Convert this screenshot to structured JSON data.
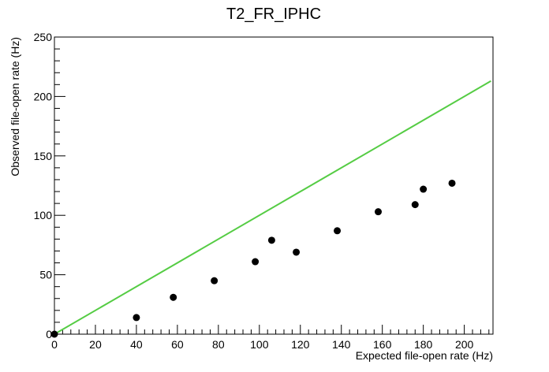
{
  "chart_data": {
    "type": "scatter",
    "title": "T2_FR_IPHC",
    "xlabel": "Expected file-open rate (Hz)",
    "ylabel": "Observed file-open rate (Hz)",
    "xlim": [
      0,
      214
    ],
    "ylim": [
      0,
      250
    ],
    "x_ticks": [
      0,
      20,
      40,
      60,
      80,
      100,
      120,
      140,
      160,
      180,
      200
    ],
    "y_ticks": [
      0,
      50,
      100,
      150,
      200,
      250
    ],
    "grid": false,
    "series": [
      {
        "type": "scatter",
        "color": "#000000",
        "points": [
          {
            "x": 0,
            "y": 0
          },
          {
            "x": 40,
            "y": 14
          },
          {
            "x": 58,
            "y": 31
          },
          {
            "x": 78,
            "y": 45
          },
          {
            "x": 98,
            "y": 61
          },
          {
            "x": 106,
            "y": 79
          },
          {
            "x": 118,
            "y": 69
          },
          {
            "x": 138,
            "y": 87
          },
          {
            "x": 158,
            "y": 103
          },
          {
            "x": 176,
            "y": 109
          },
          {
            "x": 180,
            "y": 122
          },
          {
            "x": 194,
            "y": 127
          }
        ]
      },
      {
        "type": "line",
        "color": "#55cc44",
        "points": [
          {
            "x": 0,
            "y": 0
          },
          {
            "x": 213,
            "y": 213
          }
        ]
      }
    ]
  }
}
